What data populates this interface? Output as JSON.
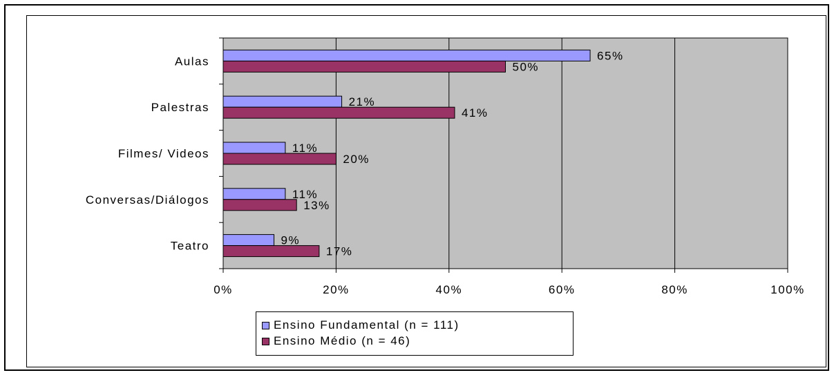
{
  "chart_data": {
    "type": "bar",
    "orientation": "horizontal",
    "categories": [
      "Aulas",
      "Palestras",
      "Filmes/ Videos",
      "Conversas/Diálogos",
      "Teatro"
    ],
    "series": [
      {
        "name": "Ensino Fundamental (n = 111)",
        "values": [
          65,
          21,
          11,
          11,
          9
        ],
        "labels": [
          "65%",
          "21%",
          "11%",
          "11%",
          "9%"
        ],
        "color": "#9999ff"
      },
      {
        "name": "Ensino Médio (n = 46)",
        "values": [
          50,
          41,
          20,
          13,
          17
        ],
        "labels": [
          "50%",
          "41%",
          "20%",
          "13%",
          "17%"
        ],
        "color": "#993366"
      }
    ],
    "xlim": [
      0,
      100
    ],
    "xticks": [
      0,
      20,
      40,
      60,
      80,
      100
    ],
    "xtick_labels": [
      "0%",
      "20%",
      "40%",
      "60%",
      "80%",
      "100%"
    ],
    "plot_background": "#c0c0c0",
    "grid": true,
    "legend_position": "bottom"
  }
}
